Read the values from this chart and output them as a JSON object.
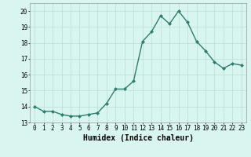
{
  "x": [
    0,
    1,
    2,
    3,
    4,
    5,
    6,
    7,
    8,
    9,
    10,
    11,
    12,
    13,
    14,
    15,
    16,
    17,
    18,
    19,
    20,
    21,
    22,
    23
  ],
  "y": [
    14.0,
    13.7,
    13.7,
    13.5,
    13.4,
    13.4,
    13.5,
    13.6,
    14.2,
    15.1,
    15.1,
    15.6,
    18.1,
    18.7,
    19.7,
    19.2,
    20.0,
    19.3,
    18.1,
    17.5,
    16.8,
    16.4,
    16.7,
    16.6
  ],
  "line_color": "#2e7d6e",
  "marker": "D",
  "marker_size": 2.0,
  "bg_color": "#d8f5f0",
  "grid_color": "#b8ddd4",
  "xlabel": "Humidex (Indice chaleur)",
  "xlabel_fontsize": 7,
  "ylim": [
    13,
    20.5
  ],
  "yticks": [
    13,
    14,
    15,
    16,
    17,
    18,
    19,
    20
  ],
  "xticks": [
    0,
    1,
    2,
    3,
    4,
    5,
    6,
    7,
    8,
    9,
    10,
    11,
    12,
    13,
    14,
    15,
    16,
    17,
    18,
    19,
    20,
    21,
    22,
    23
  ],
  "tick_fontsize": 5.5,
  "line_width": 1.0,
  "xlim": [
    -0.5,
    23.5
  ]
}
